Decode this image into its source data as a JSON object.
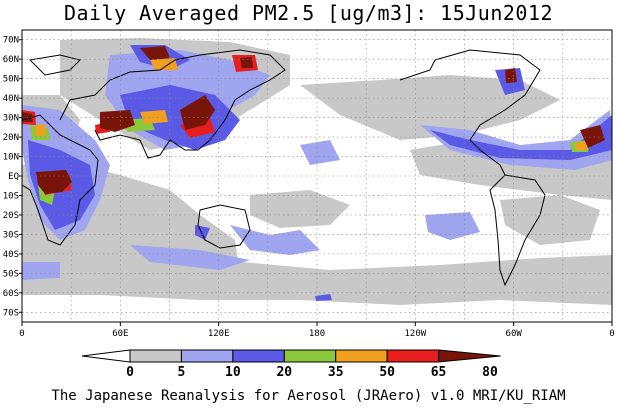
{
  "title": "Daily Averaged PM2.5 [ug/m3]: 15Jun2012",
  "credit": "The Japanese Reanalysis for Aerosol (JRAero) v1.0 MRI/KU_RIAM",
  "lat_labels": [
    "70N",
    "60N",
    "50N",
    "40N",
    "30N",
    "20N",
    "10N",
    "EQ",
    "10S",
    "20S",
    "30S",
    "40S",
    "50S",
    "60S",
    "70S"
  ],
  "lon_labels": [
    "0",
    "60E",
    "120E",
    "180",
    "120W",
    "60W",
    "0"
  ],
  "colorbar": {
    "ticks": [
      "0",
      "5",
      "10",
      "20",
      "35",
      "50",
      "65",
      "80"
    ],
    "colors": [
      "#ffffff",
      "#c8c8c8",
      "#a0a5f0",
      "#5a5ae6",
      "#8cc83c",
      "#f0a01e",
      "#e61e1e",
      "#78140a"
    ]
  },
  "grid": "on"
}
